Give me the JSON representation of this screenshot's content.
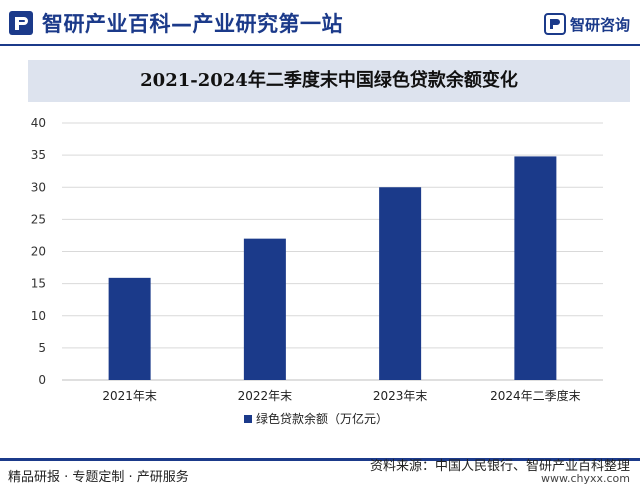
{
  "header": {
    "site_title": "智研产业百科—产业研究第一站",
    "brand_name": "智研咨询"
  },
  "footer": {
    "left_text": "精品研报 · 专题定制 · 产研服务",
    "source_text": "资料来源：中国人民银行、智研产业百科整理",
    "url_text": "www.chyxx.com"
  },
  "chart_data": {
    "type": "bar",
    "title": "2021-2024年二季度末中国绿色贷款余额变化",
    "categories": [
      "2021年末",
      "2022年末",
      "2023年末",
      "2024年二季度末"
    ],
    "series": [
      {
        "name": "绿色贷款余额（万亿元）",
        "values": [
          15.9,
          22.0,
          30.0,
          34.8
        ]
      }
    ],
    "ylim": [
      0,
      40
    ],
    "yticks": [
      0,
      5,
      10,
      15,
      20,
      25,
      30,
      35,
      40
    ],
    "grid": true,
    "legend_position": "bottom",
    "colors": {
      "bar": "#1b3a8a"
    }
  }
}
